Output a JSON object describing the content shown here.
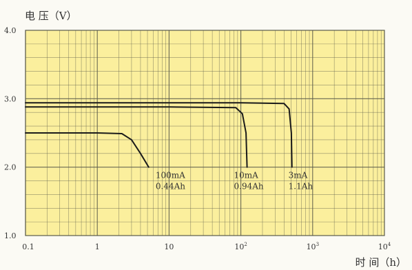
{
  "chart_data": {
    "type": "line",
    "ylabel": "电 压（V）",
    "xlabel": "时 间（h）",
    "x_scale": "log",
    "xlim": [
      0.1,
      10000
    ],
    "ylim": [
      1.0,
      4.0
    ],
    "grid": true,
    "x_ticks": [
      {
        "value": 0.1,
        "label": "0.1",
        "sup": ""
      },
      {
        "value": 1,
        "label": "1",
        "sup": ""
      },
      {
        "value": 10,
        "label": "10",
        "sup": ""
      },
      {
        "value": 100,
        "label": "10",
        "sup": "2"
      },
      {
        "value": 1000,
        "label": "10",
        "sup": "3"
      },
      {
        "value": 10000,
        "label": "10",
        "sup": "4"
      }
    ],
    "y_ticks": [
      {
        "value": 1.0,
        "label": "1.0"
      },
      {
        "value": 2.0,
        "label": "2.0"
      },
      {
        "value": 3.0,
        "label": "3.0"
      },
      {
        "value": 4.0,
        "label": "4.0"
      }
    ],
    "series": [
      {
        "x": [
          0.1,
          1,
          2.2,
          3,
          4,
          5.2
        ],
        "y": [
          2.5,
          2.5,
          2.49,
          2.4,
          2.2,
          2.0
        ]
      },
      {
        "x": [
          0.1,
          10,
          85,
          105,
          118,
          122
        ],
        "y": [
          2.88,
          2.88,
          2.87,
          2.78,
          2.5,
          2.0
        ]
      },
      {
        "x": [
          0.1,
          100,
          400,
          470,
          505,
          515
        ],
        "y": [
          2.94,
          2.94,
          2.93,
          2.85,
          2.5,
          2.0
        ]
      }
    ],
    "annotations": [
      {
        "line1": "100mA",
        "line2": "0.44Ah",
        "x": 6.5,
        "y": 1.9
      },
      {
        "line1": "10mA",
        "line2": "0.94Ah",
        "x": 80,
        "y": 1.9
      },
      {
        "line1": "3mA",
        "line2": "1.1Ah",
        "x": 460,
        "y": 1.9
      }
    ],
    "colors": {
      "plot_bg": "#fbef9d",
      "grid": "#5a5a4a",
      "curve": "#1a1a1a",
      "text": "#333333"
    }
  }
}
